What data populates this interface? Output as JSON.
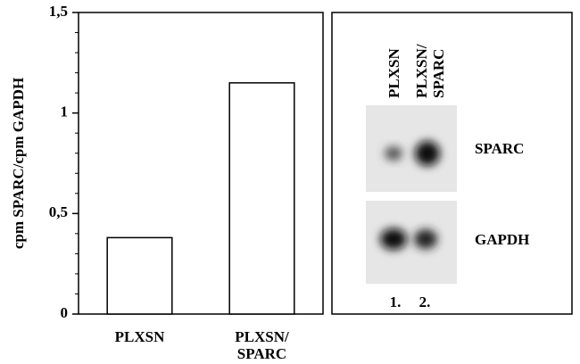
{
  "chart_data": {
    "type": "bar",
    "ylabel": "cpm SPARC/cpm GAPDH",
    "categories": [
      "PLXSN",
      "PLXSN/\nSPARC"
    ],
    "values": [
      0.38,
      1.15
    ],
    "color": "#ffffff",
    "ylim": [
      0,
      1.5
    ],
    "yticks": [
      0,
      {
        "value": 0.5,
        "label": "0,5"
      },
      1,
      {
        "value": 1.5,
        "label": "1,5"
      }
    ],
    "yminorticks": [
      0.1,
      0.2,
      0.3,
      0.4,
      0.6,
      0.7,
      0.8,
      0.9,
      1.1,
      1.2,
      1.3,
      1.4
    ]
  },
  "blot": {
    "lanes": [
      "PLXSN",
      "PLXSN/\nSPARC"
    ],
    "bands": [
      "SPARC",
      "GAPDH"
    ],
    "lane_numbers": [
      "1.",
      "2."
    ]
  }
}
